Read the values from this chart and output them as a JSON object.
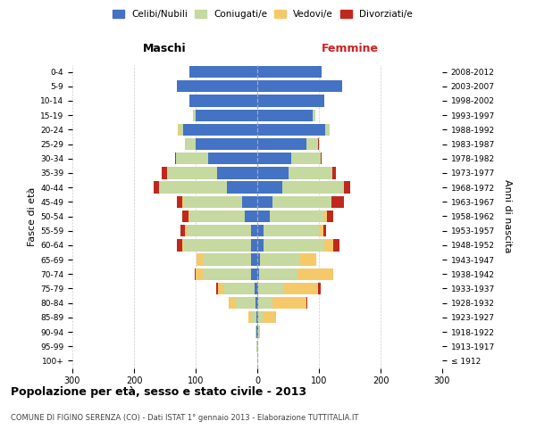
{
  "age_groups": [
    "100+",
    "95-99",
    "90-94",
    "85-89",
    "80-84",
    "75-79",
    "70-74",
    "65-69",
    "60-64",
    "55-59",
    "50-54",
    "45-49",
    "40-44",
    "35-39",
    "30-34",
    "25-29",
    "20-24",
    "15-19",
    "10-14",
    "5-9",
    "0-4"
  ],
  "year_labels": [
    "≤ 1912",
    "1913-1917",
    "1918-1922",
    "1923-1927",
    "1928-1932",
    "1933-1937",
    "1938-1942",
    "1943-1947",
    "1948-1952",
    "1953-1957",
    "1958-1962",
    "1963-1967",
    "1968-1972",
    "1973-1977",
    "1978-1982",
    "1983-1987",
    "1988-1992",
    "1993-1997",
    "1998-2002",
    "2003-2007",
    "2008-2012"
  ],
  "maschi": {
    "celibi": [
      0,
      0,
      1,
      1,
      3,
      4,
      10,
      10,
      10,
      10,
      20,
      25,
      50,
      65,
      80,
      100,
      120,
      100,
      110,
      130,
      110
    ],
    "coniugati": [
      0,
      1,
      2,
      8,
      32,
      50,
      78,
      78,
      110,
      105,
      90,
      95,
      110,
      82,
      52,
      18,
      8,
      4,
      0,
      0,
      0
    ],
    "vedovi": [
      0,
      0,
      0,
      5,
      12,
      10,
      12,
      10,
      2,
      2,
      2,
      2,
      0,
      0,
      0,
      0,
      1,
      0,
      0,
      0,
      0
    ],
    "divorziati": [
      0,
      0,
      0,
      0,
      0,
      2,
      2,
      1,
      8,
      8,
      10,
      8,
      8,
      8,
      2,
      0,
      0,
      0,
      0,
      0,
      0
    ]
  },
  "femmine": {
    "nubili": [
      0,
      0,
      1,
      1,
      2,
      2,
      3,
      5,
      10,
      10,
      20,
      25,
      40,
      50,
      55,
      80,
      110,
      90,
      108,
      138,
      104
    ],
    "coniugate": [
      0,
      1,
      2,
      8,
      22,
      42,
      62,
      65,
      98,
      92,
      88,
      95,
      100,
      72,
      48,
      18,
      8,
      4,
      0,
      0,
      0
    ],
    "vedove": [
      0,
      0,
      2,
      22,
      55,
      55,
      58,
      25,
      15,
      5,
      5,
      0,
      0,
      0,
      0,
      0,
      0,
      0,
      0,
      0,
      0
    ],
    "divorziate": [
      0,
      0,
      0,
      0,
      2,
      4,
      0,
      0,
      10,
      5,
      10,
      20,
      10,
      5,
      2,
      2,
      0,
      0,
      0,
      0,
      0
    ]
  },
  "colors": {
    "celibi_nubili": "#4472c4",
    "coniugati": "#c5d9a0",
    "vedovi": "#f5c96a",
    "divorziati": "#c0281e"
  },
  "xlim": 300,
  "title": "Popolazione per età, sesso e stato civile - 2013",
  "subtitle": "COMUNE DI FIGINO SERENZA (CO) - Dati ISTAT 1° gennaio 2013 - Elaborazione TUTTITALIA.IT",
  "ylabel_left": "Fasce di età",
  "ylabel_right": "Anni di nascita",
  "xlabel_maschi": "Maschi",
  "xlabel_femmine": "Femmine",
  "bg_color": "#ffffff",
  "grid_color": "#cccccc",
  "legend_labels": [
    "Celibi/Nubili",
    "Coniugati/e",
    "Vedovi/e",
    "Divorziati/e"
  ]
}
